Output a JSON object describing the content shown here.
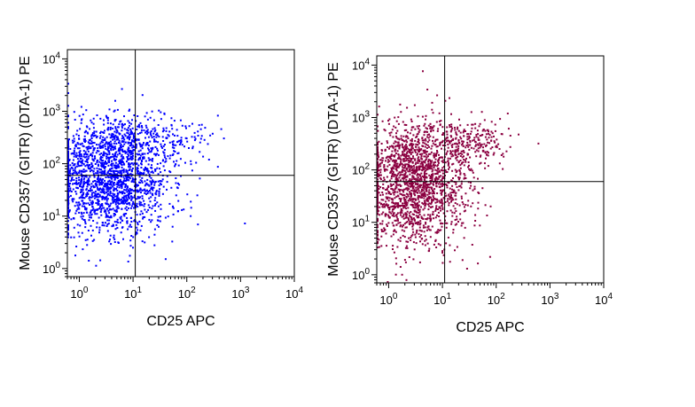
{
  "chart_data": [
    {
      "type": "scatter",
      "xlabel": "CD25 APC",
      "ylabel": "Mouse CD357 (GITR) (DTA-1) PE",
      "xscale": "log",
      "yscale": "log",
      "xlim": [
        0.6,
        10000
      ],
      "ylim": [
        0.7,
        15000
      ],
      "x_ticks": [
        {
          "value": 1,
          "base": "10",
          "exp": "0"
        },
        {
          "value": 10,
          "base": "10",
          "exp": "1"
        },
        {
          "value": 100,
          "base": "10",
          "exp": "2"
        },
        {
          "value": 1000,
          "base": "10",
          "exp": "3"
        },
        {
          "value": 10000,
          "base": "10",
          "exp": "4"
        }
      ],
      "y_ticks": [
        {
          "value": 1,
          "base": "10",
          "exp": "0"
        },
        {
          "value": 10,
          "base": "10",
          "exp": "1"
        },
        {
          "value": 100,
          "base": "10",
          "exp": "2"
        },
        {
          "value": 1000,
          "base": "10",
          "exp": "3"
        },
        {
          "value": 10000,
          "base": "10",
          "exp": "4"
        }
      ],
      "quadrant_gate": {
        "x": 11,
        "y": 60
      },
      "grid": false,
      "point_color": "#0000ff",
      "populations": [
        {
          "x_center": 3.5,
          "y_center": 45,
          "x_spread": 0.55,
          "y_spread": 0.5,
          "count": 1700
        },
        {
          "x_center": 5,
          "y_center": 260,
          "x_spread": 0.45,
          "y_spread": 0.3,
          "count": 280
        },
        {
          "x_center": 45,
          "y_center": 270,
          "x_spread": 0.4,
          "y_spread": 0.25,
          "count": 150
        }
      ]
    },
    {
      "type": "scatter",
      "xlabel": "CD25 APC",
      "ylabel": "Mouse CD357 (GITR) (DTA-1) PE",
      "xscale": "log",
      "yscale": "log",
      "xlim": [
        0.6,
        10000
      ],
      "ylim": [
        0.7,
        15000
      ],
      "x_ticks": [
        {
          "value": 1,
          "base": "10",
          "exp": "0"
        },
        {
          "value": 10,
          "base": "10",
          "exp": "1"
        },
        {
          "value": 100,
          "base": "10",
          "exp": "2"
        },
        {
          "value": 1000,
          "base": "10",
          "exp": "3"
        },
        {
          "value": 10000,
          "base": "10",
          "exp": "4"
        }
      ],
      "y_ticks": [
        {
          "value": 1,
          "base": "10",
          "exp": "0"
        },
        {
          "value": 10,
          "base": "10",
          "exp": "1"
        },
        {
          "value": 100,
          "base": "10",
          "exp": "2"
        },
        {
          "value": 1000,
          "base": "10",
          "exp": "3"
        },
        {
          "value": 10000,
          "base": "10",
          "exp": "4"
        }
      ],
      "quadrant_gate": {
        "x": 11,
        "y": 60
      },
      "grid": false,
      "point_color": "#8b0040",
      "populations": [
        {
          "x_center": 3,
          "y_center": 45,
          "x_spread": 0.5,
          "y_spread": 0.55,
          "count": 1600
        },
        {
          "x_center": 4,
          "y_center": 300,
          "x_spread": 0.45,
          "y_spread": 0.3,
          "count": 250
        },
        {
          "x_center": 40,
          "y_center": 330,
          "x_spread": 0.35,
          "y_spread": 0.2,
          "count": 180
        }
      ]
    }
  ]
}
